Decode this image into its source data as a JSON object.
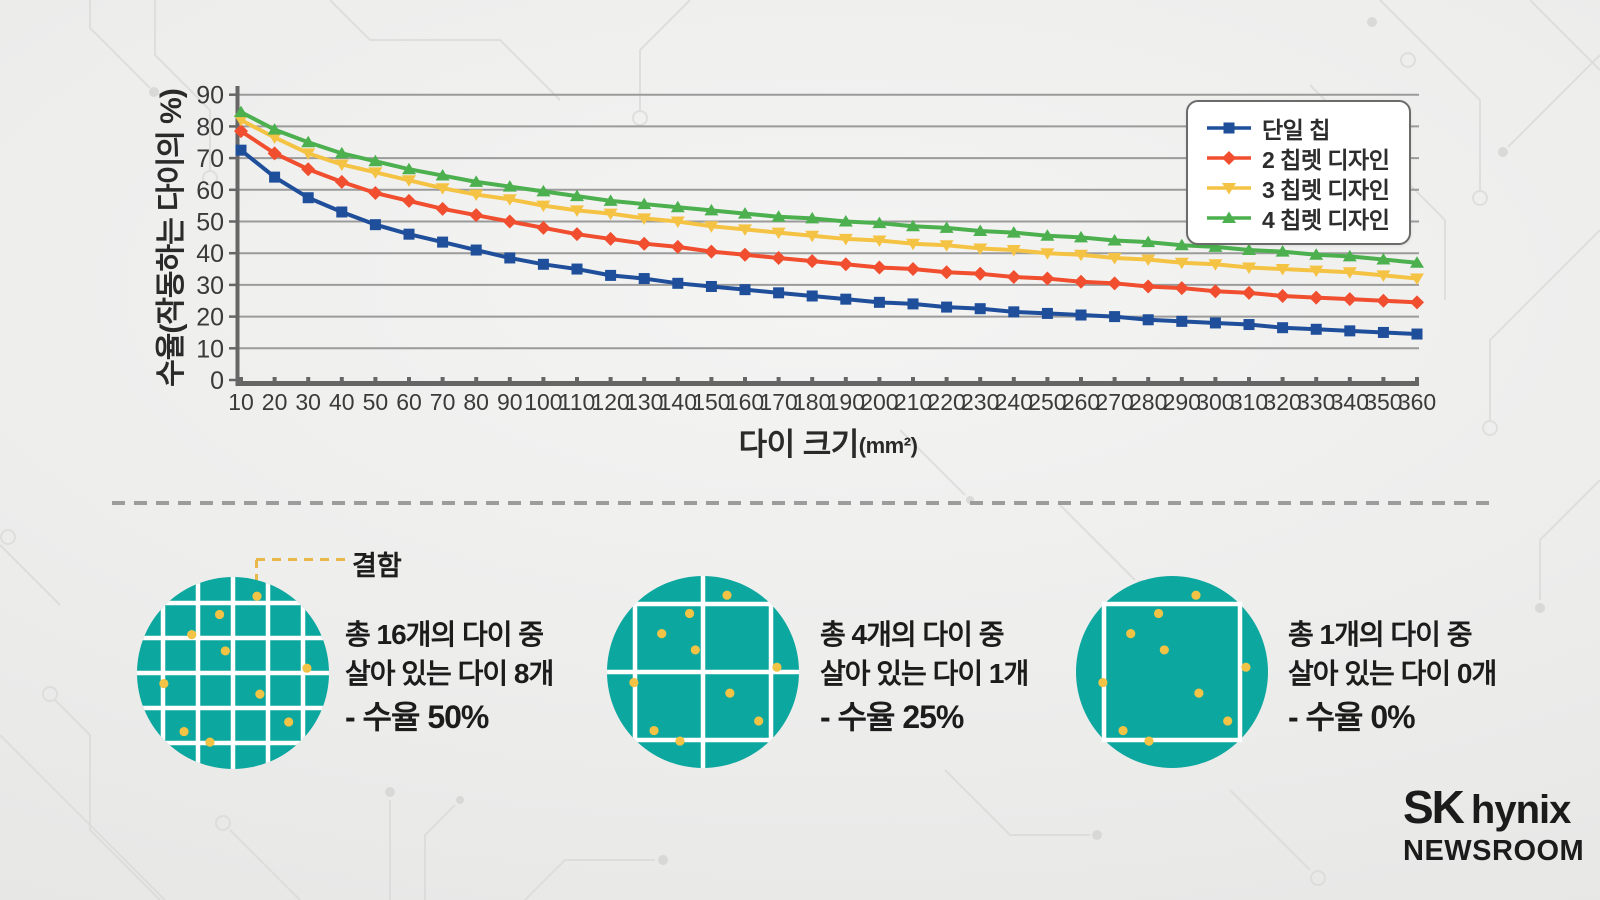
{
  "chart_data": {
    "type": "line",
    "title": "",
    "xlabel": "다이 크기",
    "xlabel_unit": "(mm²)",
    "ylabel": "수율(작동하는 다이의 %)",
    "ylim": [
      0,
      90
    ],
    "y_ticks": [
      0,
      10,
      20,
      30,
      40,
      50,
      60,
      70,
      80,
      90
    ],
    "grid": "horizontal",
    "legend_position": "top-right",
    "x": [
      10,
      20,
      30,
      40,
      50,
      60,
      70,
      80,
      90,
      100,
      110,
      120,
      130,
      140,
      150,
      160,
      170,
      180,
      190,
      200,
      210,
      220,
      230,
      240,
      250,
      260,
      270,
      280,
      290,
      300,
      310,
      320,
      330,
      340,
      350,
      360
    ],
    "series": [
      {
        "name": "단일 칩",
        "color": "#1f4e9a",
        "marker": "square",
        "values": [
          72.5,
          64,
          57.5,
          53,
          49,
          46,
          43.5,
          41,
          38.5,
          36.5,
          35,
          33,
          32,
          30.5,
          29.5,
          28.5,
          27.5,
          26.5,
          25.5,
          24.5,
          24,
          23,
          22.5,
          21.5,
          21,
          20.5,
          20,
          19,
          18.5,
          18,
          17.5,
          16.5,
          16,
          15.5,
          15,
          14.5
        ]
      },
      {
        "name": "2 칩렛 디자인",
        "color": "#f04e2e",
        "marker": "diamond",
        "values": [
          78.5,
          71.5,
          66.5,
          62.5,
          59,
          56.5,
          54,
          52,
          50,
          48,
          46,
          44.5,
          43,
          42,
          40.5,
          39.5,
          38.5,
          37.5,
          36.5,
          35.5,
          35,
          34,
          33.5,
          32.5,
          32,
          31,
          30.5,
          29.5,
          29,
          28,
          27.5,
          26.5,
          26,
          25.5,
          25,
          24.5
        ]
      },
      {
        "name": "3 칩렛 디자인",
        "color": "#f5c344",
        "marker": "triangle-down",
        "values": [
          82,
          76.5,
          71.5,
          68,
          65.5,
          63,
          60.5,
          58.5,
          57,
          55,
          53.5,
          52.5,
          51,
          50,
          48.5,
          47.5,
          46.5,
          45.5,
          44.5,
          44,
          43,
          42.5,
          41.5,
          41,
          40,
          39.5,
          38.5,
          38,
          37,
          36.5,
          35.5,
          35,
          34.5,
          34,
          33,
          32
        ]
      },
      {
        "name": "4 칩렛 디자인",
        "color": "#4cb04f",
        "marker": "triangle-up",
        "values": [
          84.5,
          79,
          75,
          71.5,
          69,
          66.5,
          64.5,
          62.5,
          61,
          59.5,
          58,
          56.5,
          55.5,
          54.5,
          53.5,
          52.5,
          51.5,
          51,
          50,
          49.5,
          48.5,
          48,
          47,
          46.5,
          45.5,
          45,
          44,
          43.5,
          42.5,
          42,
          41,
          40.5,
          39.5,
          39,
          38,
          37
        ]
      }
    ]
  },
  "defect_label": "결함",
  "wafer_style": {
    "wafer_color": "#0ca79e",
    "defect_color": "#f2c344",
    "grid_line_color": "#ffffff",
    "defects": [
      [
        0.625,
        0.1
      ],
      [
        0.43,
        0.195
      ],
      [
        0.285,
        0.3
      ],
      [
        0.46,
        0.385
      ],
      [
        0.885,
        0.475
      ],
      [
        0.14,
        0.555
      ],
      [
        0.64,
        0.61
      ],
      [
        0.79,
        0.755
      ],
      [
        0.245,
        0.805
      ],
      [
        0.38,
        0.86
      ]
    ]
  },
  "wafers": [
    {
      "grid": "4x4",
      "total_text": "총 16개의 다이 중",
      "alive_text": "살아 있는 다이 8개",
      "yield_text": "- 수율 50%"
    },
    {
      "grid": "2x2",
      "total_text": "총 4개의 다이 중",
      "alive_text": "살아 있는 다이 1개",
      "yield_text": "- 수율 25%"
    },
    {
      "grid": "1x1",
      "total_text": "총 1개의 다이 중",
      "alive_text": "살아 있는 다이 0개",
      "yield_text": "- 수율 0%"
    }
  ],
  "logo": {
    "sk": "SK",
    "hynix": "hynix",
    "newsroom": "NEWSROOM"
  }
}
